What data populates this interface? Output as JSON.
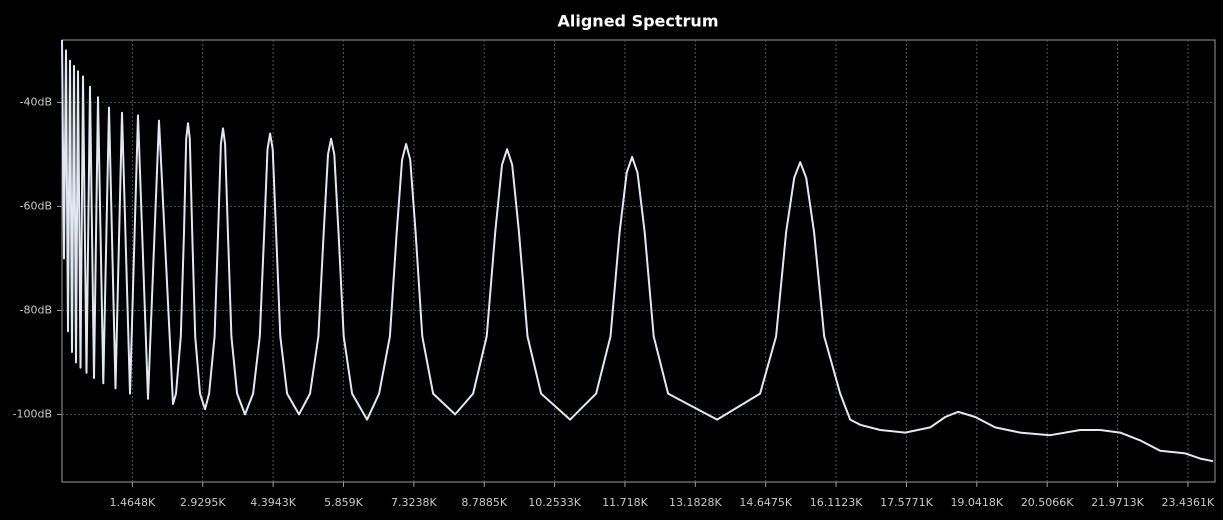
{
  "chart_data": {
    "type": "line",
    "title": "Aligned Spectrum",
    "x": [
      0,
      42,
      83,
      125,
      167,
      208,
      250,
      291,
      333,
      385,
      437,
      510,
      583,
      666,
      750,
      859,
      979,
      1114,
      1249,
      1416,
      1582,
      1790,
      2019,
      2311,
      2373,
      2473,
      2540,
      2586,
      2623,
      2661,
      2711,
      2773,
      2873,
      2977,
      3061,
      3177,
      3250,
      3308,
      3352,
      3396,
      3454,
      3527,
      3644,
      3810,
      3977,
      4118,
      4208,
      4278,
      4331,
      4385,
      4456,
      4543,
      4685,
      4934,
      5163,
      5338,
      5448,
      5536,
      5601,
      5667,
      5755,
      5863,
      6038,
      6350,
      6600,
      6825,
      6967,
      7079,
      7162,
      7247,
      7360,
      7499,
      7724,
      8182,
      8557,
      8840,
      9017,
      9159,
      9265,
      9371,
      9513,
      9690,
      9973,
      10577,
      11118,
      11418,
      11606,
      11755,
      11867,
      11980,
      12130,
      12317,
      12617,
      13637,
      14532,
      14865,
      15073,
      15240,
      15365,
      15490,
      15656,
      15865,
      16198,
      16406,
      16614,
      17031,
      17551,
      18072,
      18384,
      18655,
      19009,
      19425,
      19946,
      20570,
      21195,
      21611,
      22027,
      22444,
      22860,
      23381,
      23693,
      23960
    ],
    "values": [
      -28,
      -70,
      -30,
      -84,
      -32,
      -88,
      -33,
      -90,
      -34,
      -91,
      -35,
      -92,
      -37,
      -93,
      -39,
      -94,
      -41,
      -95,
      -42,
      -96,
      -42.5,
      -97,
      -43.5,
      -98,
      -96,
      -85,
      -65,
      -47,
      -44,
      -47,
      -65,
      -85,
      -96,
      -99,
      -96,
      -85,
      -65,
      -48,
      -45,
      -48,
      -65,
      -85,
      -96,
      -100,
      -96,
      -85,
      -65,
      -49,
      -46,
      -49,
      -65,
      -85,
      -96,
      -100,
      -96,
      -85,
      -65,
      -50,
      -47,
      -50,
      -65,
      -85,
      -96,
      -101,
      -96,
      -85,
      -65,
      -51,
      -48,
      -51,
      -65,
      -85,
      -96,
      -100,
      -96,
      -85,
      -65,
      -52,
      -49,
      -52,
      -65,
      -85,
      -96,
      -101,
      -96,
      -85,
      -65,
      -53.5,
      -50.5,
      -53.5,
      -65,
      -85,
      -96,
      -101,
      -96,
      -85,
      -65,
      -54.5,
      -51.5,
      -54.5,
      -65,
      -85,
      -96,
      -101,
      -102,
      -103,
      -103.5,
      -102.5,
      -100.5,
      -99.5,
      -100.5,
      -102.5,
      -103.5,
      -104,
      -103,
      -103,
      -103.5,
      -105,
      -107,
      -107.5,
      -108.5,
      -109
    ],
    "color": "#e2e8f2",
    "xlim": [
      0,
      24000
    ],
    "ylim": [
      -113,
      -28
    ],
    "xticks": [
      {
        "value": 1464.8,
        "label": "1.4648K"
      },
      {
        "value": 2929.5,
        "label": "2.9295K"
      },
      {
        "value": 4394.3,
        "label": "4.3943K"
      },
      {
        "value": 5859,
        "label": "5.859K"
      },
      {
        "value": 7323.8,
        "label": "7.3238K"
      },
      {
        "value": 8788.5,
        "label": "8.7885K"
      },
      {
        "value": 10253.3,
        "label": "10.2533K"
      },
      {
        "value": 11718,
        "label": "11.718K"
      },
      {
        "value": 13182.8,
        "label": "13.1828K"
      },
      {
        "value": 14647.5,
        "label": "14.6475K"
      },
      {
        "value": 16112.3,
        "label": "16.1123K"
      },
      {
        "value": 17577.1,
        "label": "17.5771K"
      },
      {
        "value": 19041.8,
        "label": "19.0418K"
      },
      {
        "value": 20506.6,
        "label": "20.5066K"
      },
      {
        "value": 21971.3,
        "label": "21.9713K"
      },
      {
        "value": 23436.1,
        "label": "23.4361K"
      }
    ],
    "yticks": [
      {
        "value": -40,
        "label": "-40dB"
      },
      {
        "value": -60,
        "label": "-60dB"
      },
      {
        "value": -80,
        "label": "-80dB"
      },
      {
        "value": -100,
        "label": "-100dB"
      }
    ],
    "grid": true
  }
}
